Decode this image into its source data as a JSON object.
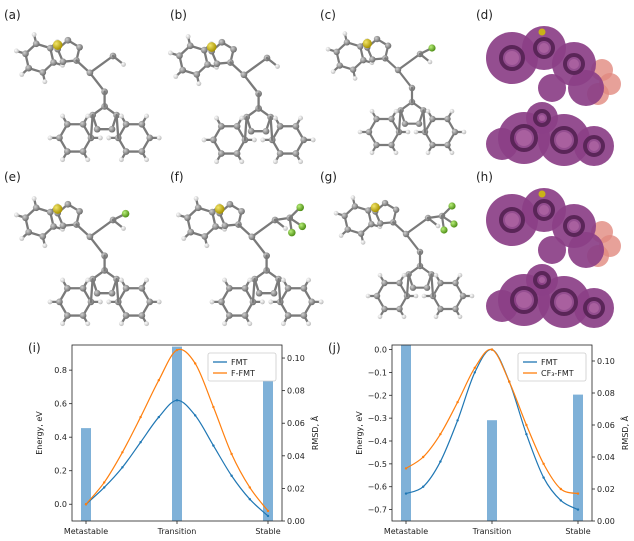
{
  "panel_labels": [
    "(a)",
    "(b)",
    "(c)",
    "(d)",
    "(e)",
    "(f)",
    "(g)",
    "(h)",
    "(i)",
    "(j)"
  ],
  "colors": {
    "fmt": "#1f77b4",
    "variant": "#ff7f0e",
    "bar": "#7fb1d8",
    "surface": "#8b3f87",
    "surface_dark": "#5a2558",
    "fluorine_blob": "#e18a7f",
    "sulfur": "#c9b318",
    "fluorine": "#7cbf2f",
    "carbon": "#8e8e8e",
    "hydrogen": "#dcdcdc"
  },
  "chart_data": [
    {
      "type": "line",
      "panel": "(i)",
      "categories": [
        "Metastable",
        "Transition",
        "Stable"
      ],
      "ylabel": "Energy, eV",
      "y2label": "RMSD, Å",
      "ylim": [
        -0.1,
        0.95
      ],
      "y2lim": [
        0,
        0.108
      ],
      "yticks": [
        "0.0",
        "0.2",
        "0.4",
        "0.6",
        "0.8"
      ],
      "y2ticks": [
        "0.00",
        "0.02",
        "0.04",
        "0.06",
        "0.08",
        "0.10"
      ],
      "legend_position": "upper-right",
      "series": [
        {
          "name": "FMT",
          "x": [
            0,
            0.1,
            0.2,
            0.3,
            0.4,
            0.5,
            0.6,
            0.7,
            0.8,
            0.9,
            1.0
          ],
          "values": [
            0.0,
            0.1,
            0.22,
            0.37,
            0.52,
            0.62,
            0.53,
            0.35,
            0.17,
            0.03,
            -0.07
          ]
        },
        {
          "name": "F-FMT",
          "x": [
            0,
            0.1,
            0.2,
            0.3,
            0.4,
            0.5,
            0.6,
            0.7,
            0.8,
            0.9,
            1.0
          ],
          "values": [
            0.0,
            0.13,
            0.31,
            0.52,
            0.74,
            0.92,
            0.84,
            0.58,
            0.3,
            0.1,
            -0.04
          ]
        }
      ],
      "bars": {
        "x": [
          0,
          0.5,
          1.0
        ],
        "values": [
          0.057,
          0.107,
          0.1
        ]
      }
    },
    {
      "type": "line",
      "panel": "(j)",
      "categories": [
        "Metastable",
        "Transition",
        "Stable"
      ],
      "ylabel": "Energy, eV",
      "y2label": "RMSD, Å",
      "ylim": [
        -0.75,
        0.02
      ],
      "y2lim": [
        0,
        0.11
      ],
      "yticks": [
        "0.0",
        "−0.1",
        "−0.2",
        "−0.3",
        "−0.4",
        "−0.5",
        "−0.6",
        "−0.7"
      ],
      "y2ticks": [
        "0.00",
        "0.02",
        "0.04",
        "0.06",
        "0.08",
        "0.10"
      ],
      "legend_position": "upper-right",
      "series": [
        {
          "name": "FMT",
          "x": [
            0,
            0.1,
            0.2,
            0.3,
            0.4,
            0.5,
            0.6,
            0.7,
            0.8,
            0.9,
            1.0
          ],
          "values": [
            -0.63,
            -0.6,
            -0.49,
            -0.31,
            -0.1,
            0.0,
            -0.14,
            -0.37,
            -0.56,
            -0.66,
            -0.7
          ]
        },
        {
          "name": "CF₃-FMT",
          "x": [
            0,
            0.1,
            0.2,
            0.3,
            0.4,
            0.5,
            0.6,
            0.7,
            0.8,
            0.9,
            1.0
          ],
          "values": [
            -0.52,
            -0.47,
            -0.37,
            -0.23,
            -0.08,
            0.0,
            -0.14,
            -0.33,
            -0.5,
            -0.61,
            -0.63
          ]
        }
      ],
      "bars": {
        "x": [
          0,
          0.5,
          1.0
        ],
        "values": [
          0.11,
          0.063,
          0.079
        ]
      }
    }
  ]
}
